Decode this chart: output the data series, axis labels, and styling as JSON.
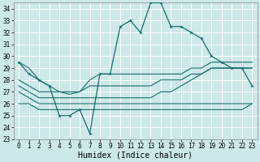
{
  "xlabel": "Humidex (Indice chaleur)",
  "bg_color": "#cce8e8",
  "grid_color": "#ffffff",
  "line_color": "#1a6b6b",
  "xlim": [
    -0.5,
    23.5
  ],
  "ylim": [
    23,
    34.5
  ],
  "yticks": [
    23,
    24,
    25,
    26,
    27,
    28,
    29,
    30,
    31,
    32,
    33,
    34
  ],
  "xticks": [
    0,
    1,
    2,
    3,
    4,
    5,
    6,
    7,
    8,
    9,
    10,
    11,
    12,
    13,
    14,
    15,
    16,
    17,
    18,
    19,
    20,
    21,
    22,
    23
  ],
  "main_y": [
    29.5,
    28.5,
    28.0,
    27.5,
    25.0,
    25.0,
    25.5,
    23.5,
    28.5,
    28.5,
    32.5,
    33.0,
    32.0,
    34.5,
    34.5,
    32.5,
    32.5,
    32.0,
    31.5,
    30.0,
    29.5,
    29.0,
    29.0,
    27.5
  ],
  "line_top_y": [
    29.5,
    29.0,
    28.0,
    27.5,
    27.0,
    26.8,
    27.0,
    28.0,
    28.5,
    28.5,
    28.5,
    28.5,
    28.5,
    28.5,
    28.5,
    28.5,
    28.5,
    29.0,
    29.0,
    29.5,
    29.5,
    29.5,
    29.5,
    29.5
  ],
  "line_mid_y": [
    28.0,
    27.5,
    27.0,
    27.0,
    27.0,
    27.0,
    27.0,
    27.5,
    27.5,
    27.5,
    27.5,
    27.5,
    27.5,
    27.5,
    28.0,
    28.0,
    28.0,
    28.5,
    28.5,
    29.0,
    29.0,
    29.0,
    29.0,
    29.0
  ],
  "line_low_y": [
    27.5,
    27.0,
    26.5,
    26.5,
    26.5,
    26.5,
    26.5,
    26.5,
    26.5,
    26.5,
    26.5,
    26.5,
    26.5,
    26.5,
    27.0,
    27.0,
    27.5,
    28.0,
    28.5,
    29.0,
    29.0,
    29.0,
    29.0,
    29.0
  ],
  "line_bot_y": [
    27.0,
    26.5,
    26.0,
    26.0,
    26.0,
    26.0,
    26.0,
    26.0,
    26.0,
    26.0,
    26.0,
    26.0,
    26.0,
    26.0,
    26.0,
    26.0,
    26.0,
    26.0,
    26.0,
    26.0,
    26.0,
    26.0,
    26.0,
    26.0
  ],
  "line_flat_y": [
    26.0,
    26.0,
    25.5,
    25.5,
    25.5,
    25.5,
    25.5,
    25.5,
    25.5,
    25.5,
    25.5,
    25.5,
    25.5,
    25.5,
    25.5,
    25.5,
    25.5,
    25.5,
    25.5,
    25.5,
    25.5,
    25.5,
    25.5,
    26.0
  ]
}
